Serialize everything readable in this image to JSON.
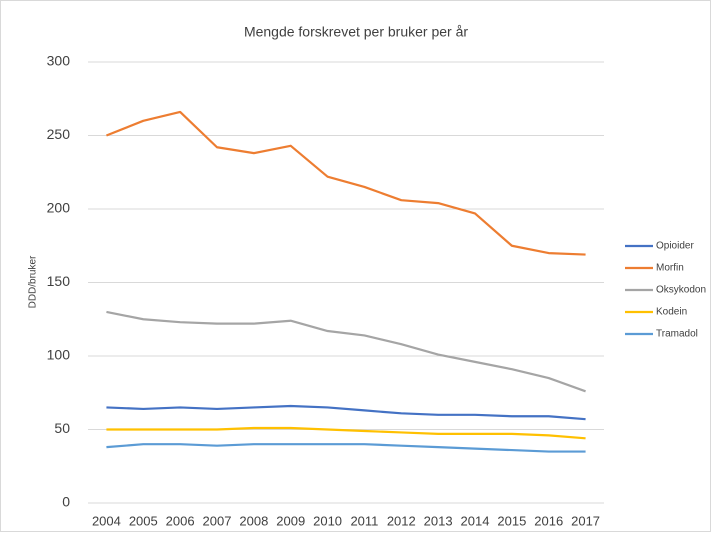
{
  "chart_data": {
    "type": "line",
    "title": "Mengde forskrevet per bruker per år",
    "y_label": "DDD/bruker",
    "categories": [
      "2004",
      "2005",
      "2006",
      "2007",
      "2008",
      "2009",
      "2010",
      "2011",
      "2012",
      "2013",
      "2014",
      "2015",
      "2016",
      "2017"
    ],
    "series": [
      {
        "name": "Opioider",
        "color": "#4472c4",
        "values": [
          65,
          64,
          65,
          64,
          65,
          66,
          65,
          63,
          61,
          60,
          60,
          59,
          59,
          57
        ]
      },
      {
        "name": "Morfin",
        "color": "#ed7d31",
        "values": [
          250,
          260,
          266,
          242,
          238,
          243,
          222,
          215,
          206,
          204,
          197,
          175,
          170,
          169
        ]
      },
      {
        "name": "Oksykodon",
        "color": "#a5a5a5",
        "values": [
          130,
          125,
          123,
          122,
          122,
          124,
          117,
          114,
          108,
          101,
          96,
          91,
          85,
          76
        ]
      },
      {
        "name": "Kodein",
        "color": "#ffc000",
        "values": [
          50,
          50,
          50,
          50,
          51,
          51,
          50,
          49,
          48,
          47,
          47,
          47,
          46,
          44
        ]
      },
      {
        "name": "Tramadol",
        "color": "#5b9bd5",
        "values": [
          38,
          40,
          40,
          39,
          40,
          40,
          40,
          40,
          39,
          38,
          37,
          36,
          35,
          35
        ]
      }
    ],
    "ylim": [
      0,
      300
    ],
    "yticks": [
      0,
      50,
      100,
      150,
      200,
      250,
      300
    ],
    "grid": true,
    "legend": "right"
  }
}
